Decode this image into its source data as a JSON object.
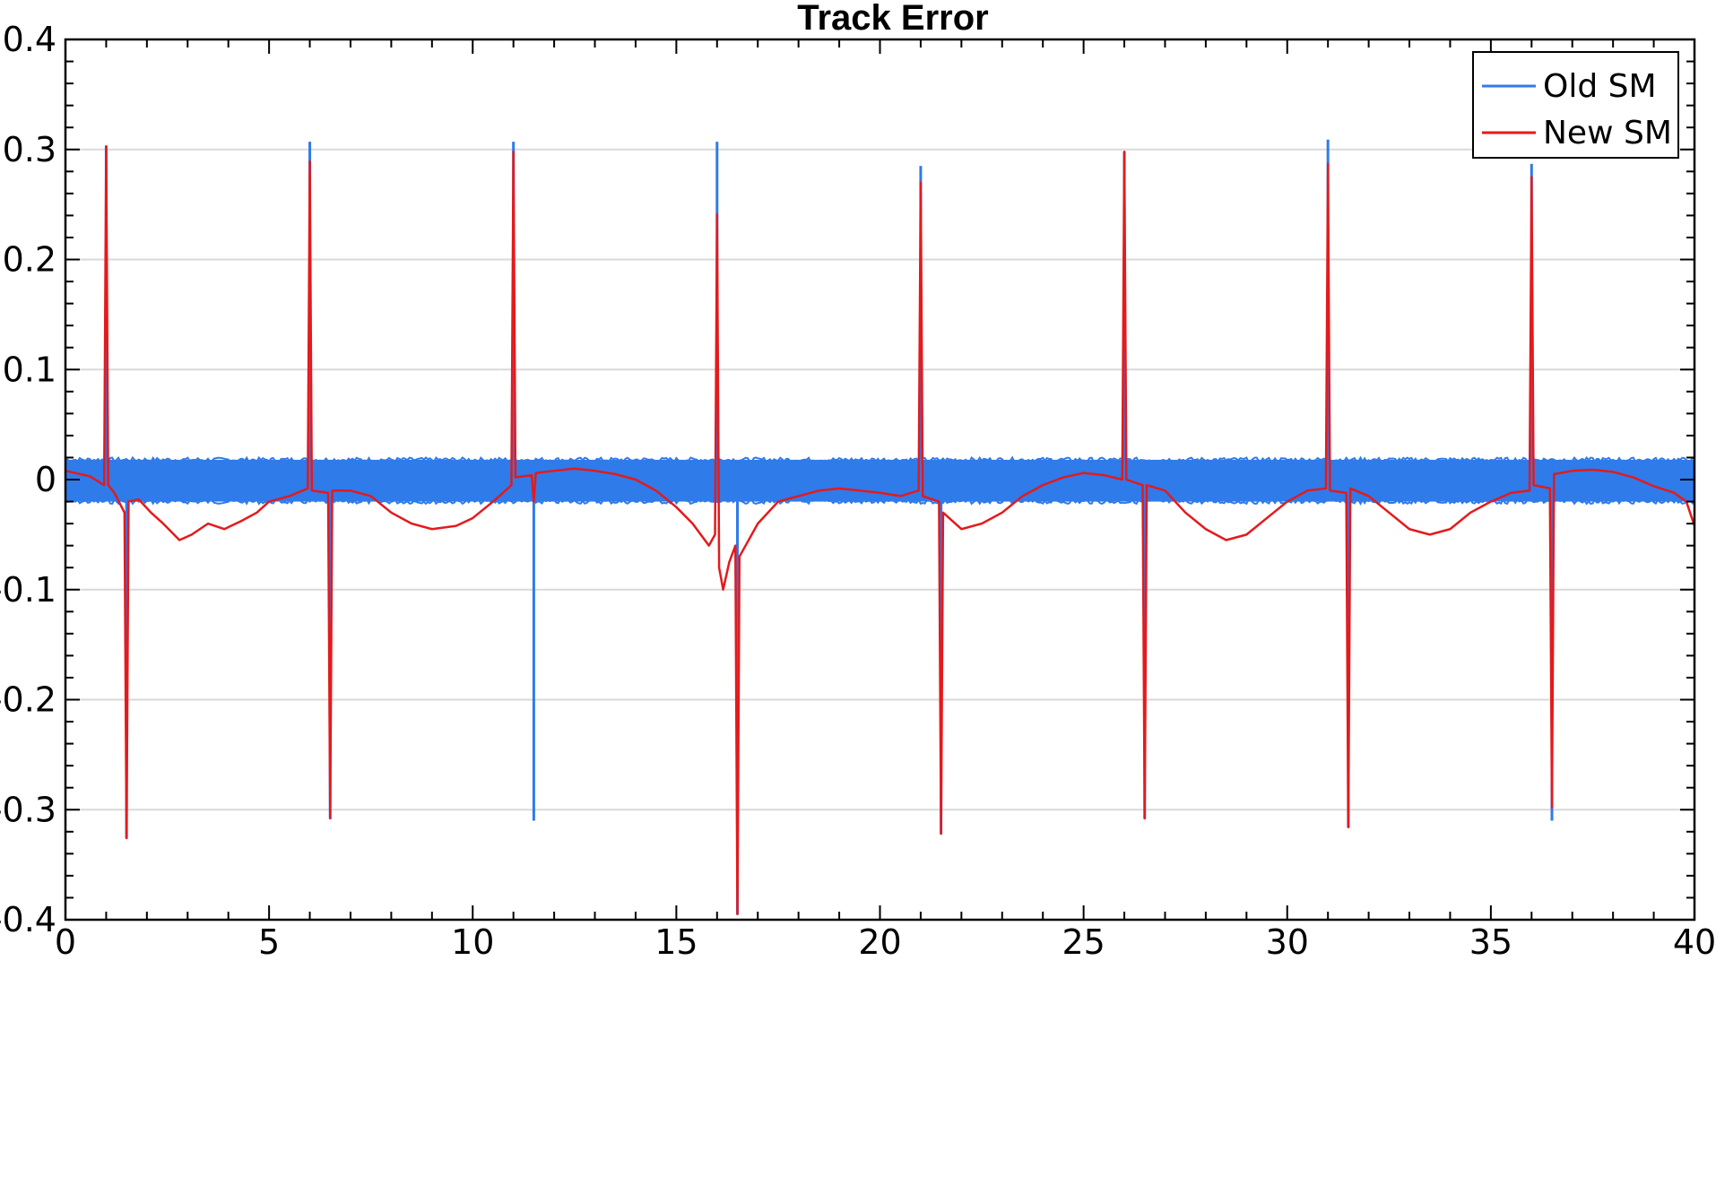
{
  "chart_data": {
    "type": "line",
    "title": "Track Error",
    "xlabel": "",
    "ylabel": "",
    "xlim": [
      0,
      40
    ],
    "ylim": [
      -0.4,
      0.4
    ],
    "x_ticks": [
      0,
      5,
      10,
      15,
      20,
      25,
      30,
      35,
      40
    ],
    "x_tick_labels": [
      "0",
      "5",
      "10",
      "15",
      "20",
      "25",
      "30",
      "35",
      "40"
    ],
    "y_ticks": [
      0.4,
      0.3,
      0.2,
      0.1,
      0,
      -0.1,
      -0.2,
      -0.3,
      -0.4
    ],
    "y_tick_labels": [
      "0.4",
      "0.3",
      "0.2",
      "0.1",
      "0",
      "-0.1",
      "-0.2",
      "-0.3",
      "-0.4"
    ],
    "grid": "horizontal",
    "legend_position": "top-right",
    "series": [
      {
        "name": "Old SM",
        "color": "#2f7bea",
        "band": [
          [
            0,
            -0.02,
            0.018
          ],
          [
            40,
            -0.02,
            0.018
          ]
        ],
        "x": [
          1.0,
          1.5,
          6.0,
          6.5,
          11.0,
          11.5,
          16.0,
          16.5,
          21.0,
          21.5,
          26.0,
          26.5,
          31.0,
          31.5,
          36.0,
          36.5
        ],
        "y": [
          0.303,
          -0.326,
          0.307,
          -0.308,
          0.307,
          -0.31,
          0.307,
          -0.395,
          0.285,
          -0.322,
          0.298,
          -0.308,
          0.309,
          -0.316,
          0.287,
          -0.31
        ]
      },
      {
        "name": "New SM",
        "color": "#e41a1c",
        "x": [
          0,
          0.6,
          0.95,
          1.0,
          1.05,
          1.2,
          1.45,
          1.5,
          1.55,
          1.8,
          2.1,
          2.4,
          2.8,
          3.1,
          3.5,
          3.9,
          4.3,
          4.7,
          5.0,
          5.5,
          5.95,
          6.0,
          6.05,
          6.45,
          6.5,
          6.55,
          7.0,
          7.5,
          8.0,
          8.5,
          9.0,
          9.6,
          10.0,
          10.5,
          10.95,
          11.0,
          11.05,
          11.45,
          11.5,
          11.55,
          12.0,
          12.5,
          13.0,
          13.5,
          14.0,
          14.5,
          15.0,
          15.4,
          15.8,
          15.95,
          16.0,
          16.05,
          16.15,
          16.3,
          16.45,
          16.5,
          16.55,
          17.0,
          17.5,
          18.0,
          18.5,
          19.0,
          19.5,
          20.0,
          20.5,
          20.95,
          21.0,
          21.05,
          21.45,
          21.5,
          21.55,
          22.0,
          22.5,
          23.0,
          23.5,
          24.0,
          24.5,
          25.0,
          25.5,
          25.95,
          26.0,
          26.05,
          26.45,
          26.5,
          26.55,
          27.0,
          27.5,
          28.0,
          28.5,
          29.0,
          29.5,
          30.0,
          30.5,
          30.95,
          31.0,
          31.05,
          31.45,
          31.5,
          31.55,
          32.0,
          32.5,
          33.0,
          33.5,
          34.0,
          34.5,
          35.0,
          35.5,
          35.95,
          36.0,
          36.05,
          36.45,
          36.5,
          36.55,
          37.0,
          37.5,
          38.0,
          38.5,
          39.0,
          39.5,
          39.8,
          40.0
        ],
        "y": [
          0.008,
          0.003,
          -0.005,
          0.303,
          -0.005,
          -0.012,
          -0.03,
          -0.326,
          -0.02,
          -0.018,
          -0.03,
          -0.04,
          -0.055,
          -0.05,
          -0.04,
          -0.045,
          -0.038,
          -0.03,
          -0.02,
          -0.015,
          -0.008,
          0.289,
          -0.01,
          -0.012,
          -0.308,
          -0.01,
          -0.01,
          -0.015,
          -0.03,
          -0.04,
          -0.045,
          -0.042,
          -0.035,
          -0.02,
          -0.005,
          0.298,
          0.002,
          0.004,
          -0.02,
          0.006,
          0.008,
          0.01,
          0.008,
          0.005,
          0.0,
          -0.01,
          -0.025,
          -0.04,
          -0.06,
          -0.05,
          0.241,
          -0.08,
          -0.1,
          -0.075,
          -0.06,
          -0.395,
          -0.07,
          -0.04,
          -0.02,
          -0.015,
          -0.01,
          -0.008,
          -0.01,
          -0.012,
          -0.015,
          -0.01,
          0.27,
          -0.015,
          -0.02,
          -0.322,
          -0.03,
          -0.045,
          -0.04,
          -0.03,
          -0.015,
          -0.005,
          0.002,
          0.006,
          0.004,
          0.0,
          0.298,
          0.0,
          -0.005,
          -0.308,
          -0.005,
          -0.01,
          -0.03,
          -0.045,
          -0.055,
          -0.05,
          -0.035,
          -0.02,
          -0.01,
          -0.008,
          0.287,
          -0.01,
          -0.012,
          -0.316,
          -0.008,
          -0.015,
          -0.03,
          -0.045,
          -0.05,
          -0.045,
          -0.03,
          -0.02,
          -0.012,
          -0.01,
          0.275,
          -0.005,
          -0.008,
          -0.298,
          0.005,
          0.008,
          0.009,
          0.007,
          0.002,
          -0.006,
          -0.012,
          -0.02,
          -0.042
        ]
      }
    ]
  }
}
